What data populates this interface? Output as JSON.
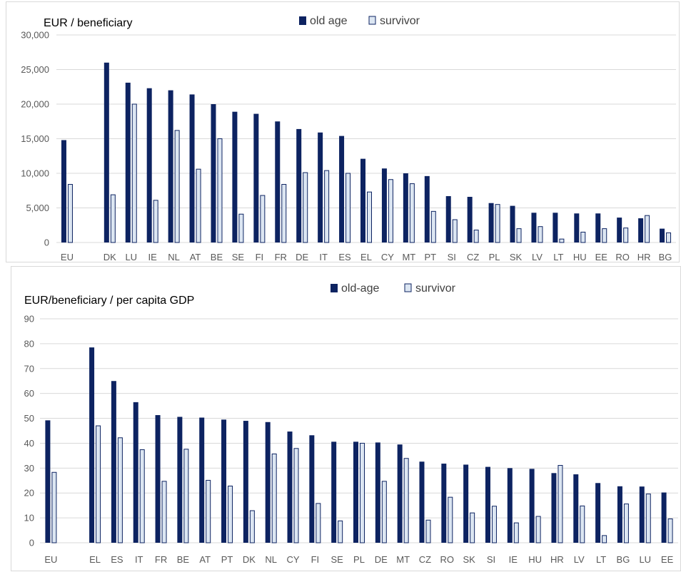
{
  "colors": {
    "old_age": "#0d2361",
    "survivor": "#dce6f2",
    "survivor_edge": "#0d2361",
    "grid": "#d9d9d9"
  },
  "chart_data": [
    {
      "type": "bar",
      "title": "EUR / beneficiary",
      "xlabel": "",
      "ylabel": "",
      "ylim": [
        0,
        30000
      ],
      "yticks": [
        "0",
        "5,000",
        "10,000",
        "15,000",
        "20,000",
        "25,000",
        "30,000"
      ],
      "legend": {
        "position": "top-center",
        "entries": [
          "old age",
          "survivor"
        ]
      },
      "grid": true,
      "categories": [
        "EU",
        "",
        "DK",
        "LU",
        "IE",
        "NL",
        "AT",
        "BE",
        "SE",
        "FI",
        "FR",
        "DE",
        "IT",
        "ES",
        "EL",
        "CY",
        "MT",
        "PT",
        "SI",
        "CZ",
        "PL",
        "SK",
        "LV",
        "LT",
        "HU",
        "EE",
        "RO",
        "HR",
        "BG"
      ],
      "series": [
        {
          "name": "old age",
          "values": [
            14800,
            null,
            26000,
            23100,
            22300,
            22000,
            21400,
            20000,
            18900,
            18600,
            17500,
            16400,
            15900,
            15400,
            12100,
            10700,
            10000,
            9600,
            6700,
            6600,
            5700,
            5300,
            4300,
            4300,
            4200,
            4200,
            3600,
            3500,
            2000
          ]
        },
        {
          "name": "survivor",
          "values": [
            8400,
            null,
            6900,
            20000,
            6100,
            16200,
            10600,
            15000,
            4100,
            6800,
            8400,
            10100,
            10400,
            10000,
            7300,
            9100,
            8500,
            4500,
            3300,
            1800,
            5500,
            2000,
            2300,
            500,
            1500,
            2000,
            2100,
            3900,
            1400
          ]
        }
      ]
    },
    {
      "type": "bar",
      "title": "EUR/beneficiary / per capita GDP",
      "xlabel": "",
      "ylabel": "",
      "ylim": [
        0,
        90
      ],
      "yticks": [
        "0",
        "10",
        "20",
        "30",
        "40",
        "50",
        "60",
        "70",
        "80",
        "90"
      ],
      "legend": {
        "position": "top-center",
        "entries": [
          "old-age",
          "survivor"
        ]
      },
      "grid": true,
      "categories": [
        "EU",
        "",
        "EL",
        "ES",
        "IT",
        "FR",
        "BE",
        "AT",
        "PT",
        "DK",
        "NL",
        "CY",
        "FI",
        "SE",
        "PL",
        "DE",
        "MT",
        "CZ",
        "RO",
        "SK",
        "SI",
        "IE",
        "HU",
        "HR",
        "LV",
        "LT",
        "BG",
        "LU",
        "EE"
      ],
      "series": [
        {
          "name": "old-age",
          "values": [
            49.2,
            null,
            78.5,
            65.0,
            56.5,
            51.3,
            50.6,
            50.3,
            49.5,
            49.0,
            48.5,
            44.7,
            43.2,
            40.6,
            40.6,
            40.3,
            39.5,
            32.6,
            31.8,
            31.4,
            30.5,
            30.0,
            29.7,
            28.0,
            27.5,
            24.0,
            22.7,
            22.6,
            20.2
          ]
        },
        {
          "name": "survivor",
          "values": [
            28.3,
            null,
            47.0,
            42.2,
            37.4,
            24.7,
            37.6,
            25.1,
            22.8,
            12.9,
            35.7,
            37.9,
            15.8,
            8.8,
            40.0,
            24.7,
            33.9,
            9.1,
            18.3,
            12.0,
            14.7,
            8.0,
            10.6,
            31.1,
            14.8,
            2.9,
            15.6,
            19.6,
            9.6
          ]
        }
      ]
    }
  ]
}
